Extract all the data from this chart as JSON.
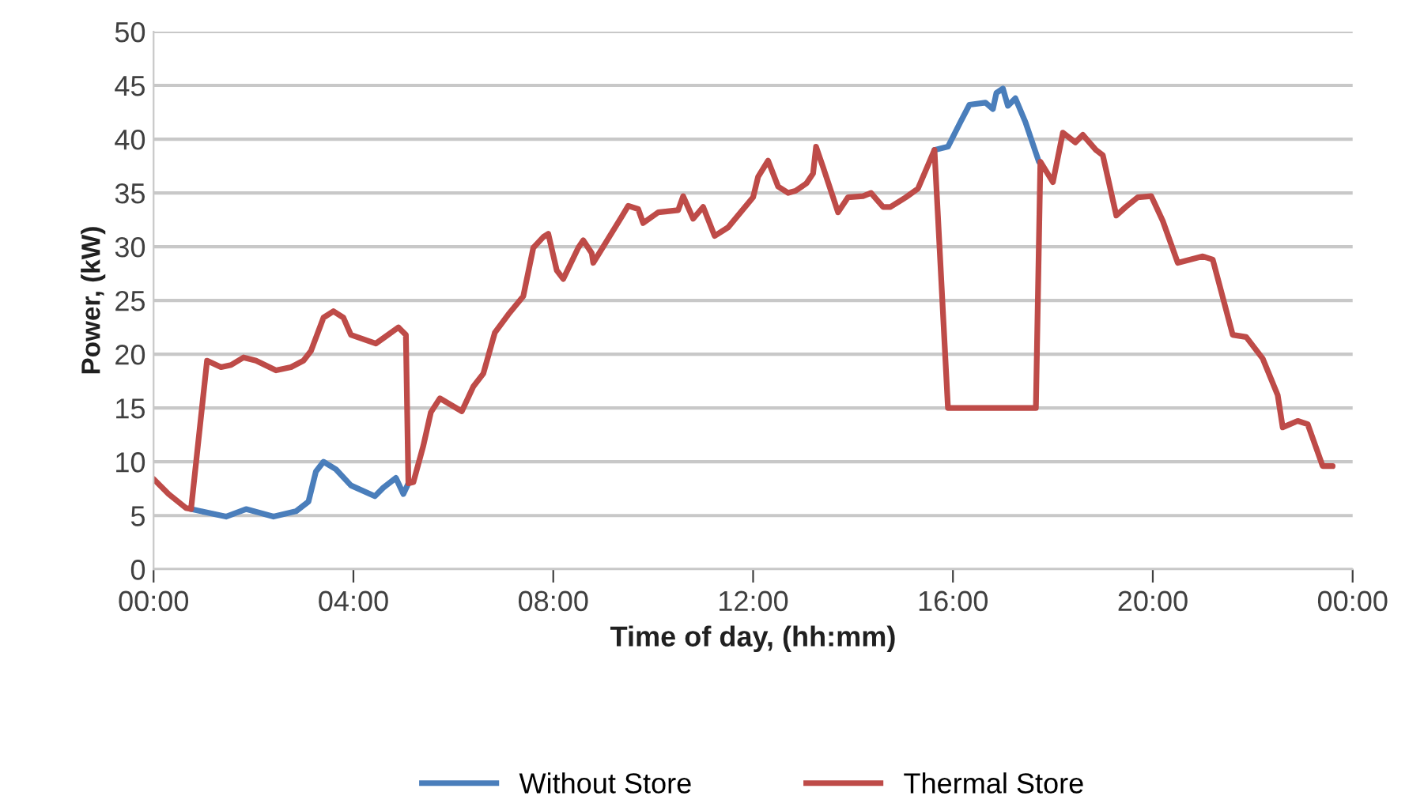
{
  "chart_data": {
    "type": "line",
    "xlabel": "Time of day, (hh:mm)",
    "ylabel": "Power, (kW)",
    "xlim": [
      0,
      24
    ],
    "xticks": [
      {
        "value": 0,
        "label": "00:00"
      },
      {
        "value": 4,
        "label": "04:00"
      },
      {
        "value": 8,
        "label": "08:00"
      },
      {
        "value": 12,
        "label": "12:00"
      },
      {
        "value": 16,
        "label": "16:00"
      },
      {
        "value": 20,
        "label": "20:00"
      },
      {
        "value": 24,
        "label": "00:00"
      }
    ],
    "ylim": [
      0,
      50
    ],
    "yticks": [
      0,
      5,
      10,
      15,
      20,
      25,
      30,
      35,
      40,
      45,
      50
    ],
    "grid": "y",
    "legend": "bottom",
    "marker": "none",
    "line_style": "solid",
    "series": [
      {
        "name": "Without Store",
        "color": "#4a7ebb",
        "x": [
          0.75,
          1.45,
          1.85,
          2.4,
          2.85,
          3.1,
          3.25,
          3.4,
          3.65,
          3.95,
          4.43,
          4.6,
          4.85,
          5.0,
          5.1,
          null,
          15.63,
          15.9,
          16.15,
          16.33,
          16.65,
          16.8,
          16.87,
          17.0,
          17.1,
          17.25,
          17.45,
          17.72
        ],
        "values": [
          5.6,
          4.9,
          5.6,
          4.9,
          5.4,
          6.3,
          9.1,
          10,
          9.3,
          7.8,
          6.8,
          7.6,
          8.5,
          7,
          8,
          null,
          39,
          39.3,
          41.6,
          43.2,
          43.4,
          42.8,
          44.3,
          44.7,
          43.1,
          43.8,
          41.6,
          37.9
        ]
      },
      {
        "name": "Thermal Store",
        "color": "#be4b48",
        "x": [
          0,
          0.3,
          0.65,
          0.75,
          1.07,
          1.35,
          1.55,
          1.8,
          2.05,
          2.45,
          2.75,
          3.0,
          3.15,
          3.4,
          3.6,
          3.8,
          3.95,
          4.45,
          4.6,
          4.9,
          5.05,
          5.1,
          5.2,
          5.4,
          5.55,
          5.73,
          5.95,
          6.17,
          6.4,
          6.6,
          6.83,
          7.1,
          7.4,
          7.6,
          7.8,
          7.9,
          8.07,
          8.2,
          8.5,
          8.6,
          8.77,
          8.8,
          9.08,
          9.37,
          9.5,
          9.7,
          9.8,
          10.1,
          10.5,
          10.6,
          10.8,
          11.0,
          11.23,
          11.5,
          12.0,
          12.1,
          12.3,
          12.5,
          12.7,
          12.85,
          13.07,
          13.2,
          13.26,
          13.4,
          13.7,
          13.9,
          14.2,
          14.36,
          14.6,
          14.75,
          15.06,
          15.3,
          15.63,
          15.9,
          17.66,
          17.75,
          18.0,
          18.2,
          18.45,
          18.6,
          18.86,
          19.0,
          19.27,
          19.46,
          19.7,
          19.97,
          20.2,
          20.5,
          21.0,
          21.2,
          21.6,
          21.87,
          22.2,
          22.5,
          22.6,
          22.9,
          23.1,
          23.4,
          23.6
        ],
        "values": [
          8.4,
          7,
          5.7,
          5.6,
          19.4,
          18.8,
          19,
          19.7,
          19.4,
          18.5,
          18.8,
          19.4,
          20.3,
          23.4,
          24,
          23.4,
          21.8,
          21,
          21.5,
          22.5,
          21.8,
          8,
          8.1,
          11.5,
          14.6,
          15.9,
          15.3,
          14.7,
          17,
          18.2,
          22,
          23.7,
          25.4,
          29.9,
          30.9,
          31.2,
          27.8,
          27,
          29.9,
          30.6,
          29.4,
          28.5,
          30.6,
          32.8,
          33.8,
          33.5,
          32.2,
          33.2,
          33.4,
          34.7,
          32.6,
          33.7,
          31,
          31.8,
          34.6,
          36.5,
          38,
          35.6,
          35,
          35.2,
          35.9,
          36.8,
          39.3,
          37.4,
          33.2,
          34.6,
          34.7,
          35,
          33.7,
          33.7,
          34.6,
          35.4,
          39,
          15,
          15,
          37.9,
          36,
          40.6,
          39.7,
          40.4,
          39,
          38.5,
          32.9,
          33.7,
          34.6,
          34.7,
          32.4,
          28.5,
          29.1,
          28.8,
          21.8,
          21.6,
          19.6,
          16.2,
          13.2,
          13.8,
          13.5,
          9.6,
          9.6
        ]
      }
    ]
  }
}
